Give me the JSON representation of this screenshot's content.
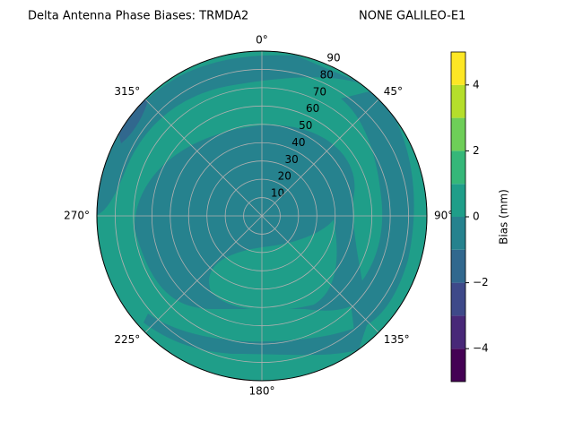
{
  "chart_data": {
    "type": "polar_contour",
    "title": "Delta Antenna Phase Biases: TRMDA2",
    "subtitle": "NONE GALILEO-E1",
    "theta_ticks": [
      {
        "value": 0,
        "label": "0°"
      },
      {
        "value": 45,
        "label": "45°"
      },
      {
        "value": 90,
        "label": "90°"
      },
      {
        "value": 135,
        "label": "135°"
      },
      {
        "value": 180,
        "label": "180°"
      },
      {
        "value": 225,
        "label": "225°"
      },
      {
        "value": 270,
        "label": "270°"
      },
      {
        "value": 315,
        "label": "315°"
      }
    ],
    "rlim": [
      0,
      90
    ],
    "rticks": [
      10,
      20,
      30,
      40,
      50,
      60,
      70,
      80,
      90
    ],
    "grid": true,
    "region_values": [
      0.5,
      -0.5,
      -0.5,
      -0.5,
      -0.5,
      -1.5
    ],
    "colorbar": {
      "label": "Bias (mm)",
      "lim": [
        -5,
        5
      ],
      "levels": [
        -5,
        -4,
        -3,
        -2,
        -1,
        0,
        1,
        2,
        3,
        4,
        5
      ],
      "colors": [
        "#440154",
        "#482878",
        "#3e4989",
        "#31688e",
        "#26828e",
        "#1f9e89",
        "#35b779",
        "#6ece58",
        "#b5de2b",
        "#fde725"
      ],
      "ticks": [
        {
          "value": -4,
          "label": "−4"
        },
        {
          "value": -2,
          "label": "−2"
        },
        0,
        2,
        4
      ]
    }
  }
}
